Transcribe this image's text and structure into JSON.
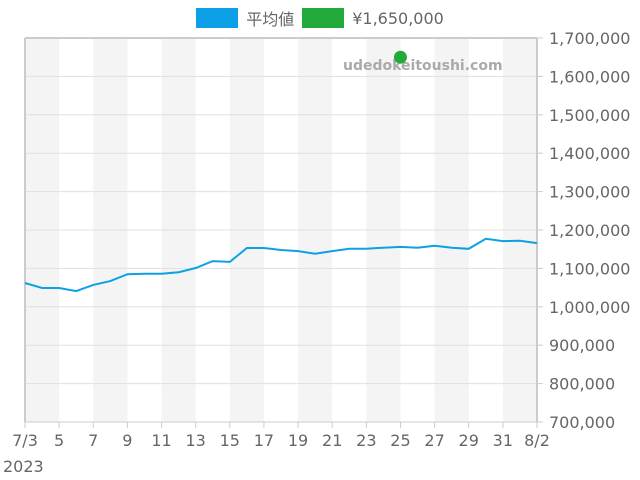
{
  "legend": {
    "items": [
      {
        "label": "平均値",
        "color": "#0ea0e6"
      },
      {
        "label": "¥1,650,000",
        "color": "#22aa3a"
      }
    ]
  },
  "watermark": "udedokeitoushi.com",
  "year_label": "2023",
  "colors": {
    "line": "#0ea0e6",
    "point": "#22aa3a",
    "band": "#f4f4f4",
    "grid": "#e0e0e0",
    "axis": "#cccccc",
    "text": "#666666"
  },
  "chart_data": {
    "type": "line",
    "title": "",
    "xlabel": "",
    "ylabel": "",
    "x_start": "2023-07-03",
    "x_end": "2023-08-02",
    "x_tick_labels": [
      "7/3",
      "5",
      "7",
      "9",
      "11",
      "13",
      "15",
      "17",
      "19",
      "21",
      "23",
      "25",
      "27",
      "29",
      "31",
      "8/2"
    ],
    "y_tick_labels": [
      "1,700,000",
      "1,600,000",
      "1,500,000",
      "1,400,000",
      "1,300,000",
      "1,200,000",
      "1,100,000",
      "1,000,000",
      "900,000",
      "800,000",
      "700,000"
    ],
    "ylim": [
      700000,
      1700000
    ],
    "y_axis_position": "right",
    "grid": true,
    "legend_position": "top",
    "series": [
      {
        "name": "平均値",
        "type": "line",
        "x": [
          "7/3",
          "7/4",
          "7/5",
          "7/6",
          "7/7",
          "7/8",
          "7/9",
          "7/10",
          "7/11",
          "7/12",
          "7/13",
          "7/14",
          "7/15",
          "7/16",
          "7/17",
          "7/18",
          "7/19",
          "7/20",
          "7/21",
          "7/22",
          "7/23",
          "7/24",
          "7/25",
          "7/26",
          "7/27",
          "7/28",
          "7/29",
          "7/30",
          "7/31",
          "8/1",
          "8/2"
        ],
        "values": [
          1062000,
          1049000,
          1049000,
          1041000,
          1057000,
          1067000,
          1085000,
          1086000,
          1086000,
          1090000,
          1101000,
          1119000,
          1117000,
          1153000,
          1153000,
          1148000,
          1145000,
          1138000,
          1145000,
          1151000,
          1151000,
          1154000,
          1156000,
          1154000,
          1159000,
          1154000,
          1151000,
          1177000,
          1171000,
          1172000,
          1166000
        ]
      },
      {
        "name": "¥1,650,000",
        "type": "scatter",
        "x": [
          "7/25"
        ],
        "values": [
          1650000
        ]
      }
    ]
  }
}
